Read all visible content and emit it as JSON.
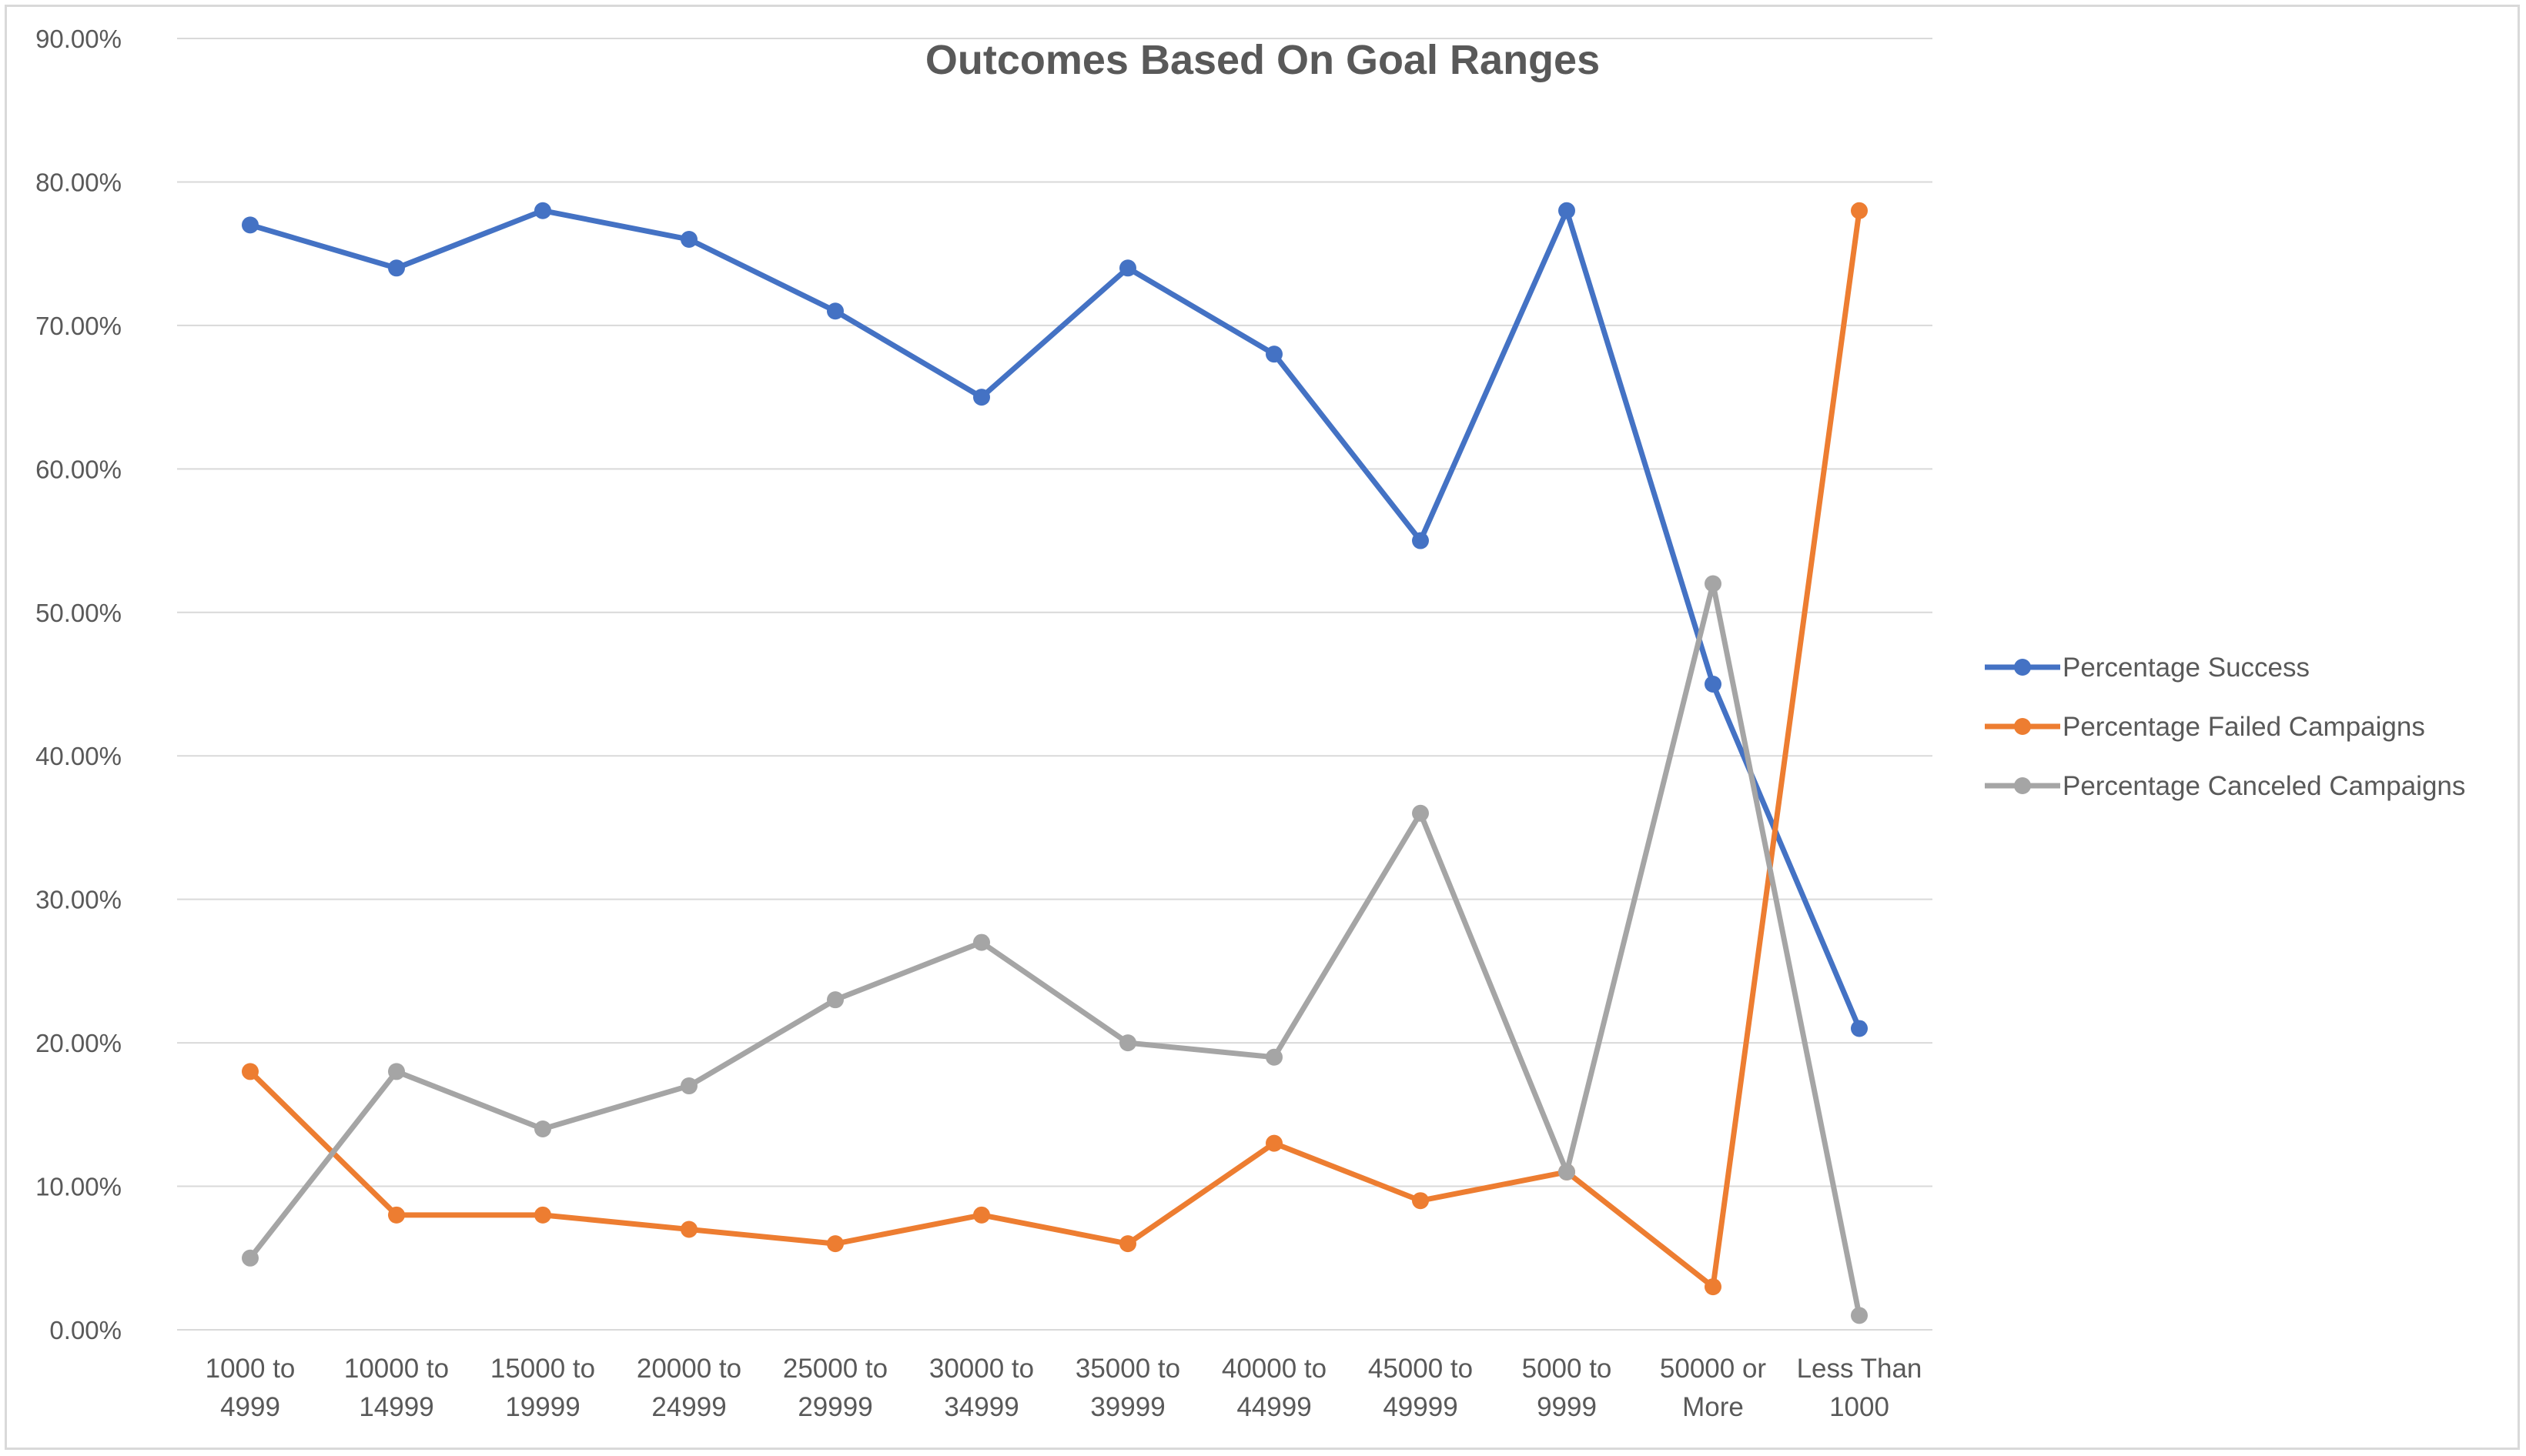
{
  "chart_data": {
    "type": "line",
    "title": "Outcomes Based On Goal Ranges",
    "xlabel": "",
    "ylabel": "",
    "ylim": [
      0,
      0.9
    ],
    "y_ticks": [
      "0.00%",
      "10.00%",
      "20.00%",
      "30.00%",
      "40.00%",
      "50.00%",
      "60.00%",
      "70.00%",
      "80.00%",
      "90.00%"
    ],
    "grid": true,
    "legend_position": "right",
    "categories": [
      [
        "1000 to",
        "4999"
      ],
      [
        "10000 to",
        "14999"
      ],
      [
        "15000 to",
        "19999"
      ],
      [
        "20000 to",
        "24999"
      ],
      [
        "25000 to",
        "29999"
      ],
      [
        "30000 to",
        "34999"
      ],
      [
        "35000 to",
        "39999"
      ],
      [
        "40000 to",
        "44999"
      ],
      [
        "45000 to",
        "49999"
      ],
      [
        "5000 to",
        "9999"
      ],
      [
        "50000 or",
        "More"
      ],
      [
        "Less Than",
        "1000"
      ]
    ],
    "series": [
      {
        "name": "Percentage Success",
        "color": "#4472c4",
        "values": [
          0.77,
          0.74,
          0.78,
          0.76,
          0.71,
          0.65,
          0.74,
          0.68,
          0.55,
          0.78,
          0.45,
          0.21
        ]
      },
      {
        "name": "Percentage Failed Campaigns",
        "color": "#ed7d31",
        "values": [
          0.18,
          0.08,
          0.08,
          0.07,
          0.06,
          0.08,
          0.06,
          0.13,
          0.09,
          0.11,
          0.03,
          0.78
        ]
      },
      {
        "name": "Percentage Canceled Campaigns",
        "color": "#a5a5a5",
        "values": [
          0.05,
          0.18,
          0.14,
          0.17,
          0.23,
          0.27,
          0.2,
          0.19,
          0.36,
          0.11,
          0.52,
          0.01
        ]
      }
    ]
  },
  "colors": {
    "gridline": "#d9d9d9",
    "text": "#595959"
  }
}
